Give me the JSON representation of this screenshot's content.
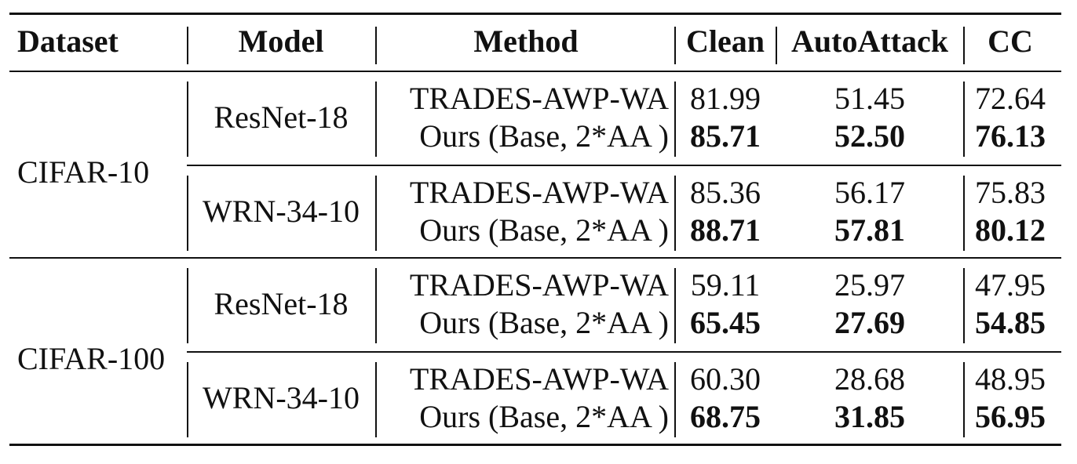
{
  "headers": {
    "dataset": "Dataset",
    "model": "Model",
    "method": "Method",
    "clean": "Clean",
    "autoattack": "AutoAttack",
    "cc": "CC"
  },
  "groups": [
    {
      "dataset": "CIFAR-10",
      "models": [
        {
          "model": "ResNet-18",
          "rows": [
            {
              "method": "TRADES-AWP-WA",
              "clean": "81.99",
              "autoattack": "51.45",
              "cc": "72.64",
              "bold": false
            },
            {
              "method": "Ours (Base, 2*AA )",
              "clean": "85.71",
              "autoattack": "52.50",
              "cc": "76.13",
              "bold": true
            }
          ]
        },
        {
          "model": "WRN-34-10",
          "rows": [
            {
              "method": "TRADES-AWP-WA",
              "clean": "85.36",
              "autoattack": "56.17",
              "cc": "75.83",
              "bold": false
            },
            {
              "method": "Ours (Base, 2*AA )",
              "clean": "88.71",
              "autoattack": "57.81",
              "cc": "80.12",
              "bold": true
            }
          ]
        }
      ]
    },
    {
      "dataset": "CIFAR-100",
      "models": [
        {
          "model": "ResNet-18",
          "rows": [
            {
              "method": "TRADES-AWP-WA",
              "clean": "59.11",
              "autoattack": "25.97",
              "cc": "47.95",
              "bold": false
            },
            {
              "method": "Ours (Base, 2*AA )",
              "clean": "65.45",
              "autoattack": "27.69",
              "cc": "54.85",
              "bold": true
            }
          ]
        },
        {
          "model": "WRN-34-10",
          "rows": [
            {
              "method": "TRADES-AWP-WA",
              "clean": "60.30",
              "autoattack": "28.68",
              "cc": "48.95",
              "bold": false
            },
            {
              "method": "Ours (Base, 2*AA )",
              "clean": "68.75",
              "autoattack": "31.85",
              "cc": "56.95",
              "bold": true
            }
          ]
        }
      ]
    }
  ]
}
